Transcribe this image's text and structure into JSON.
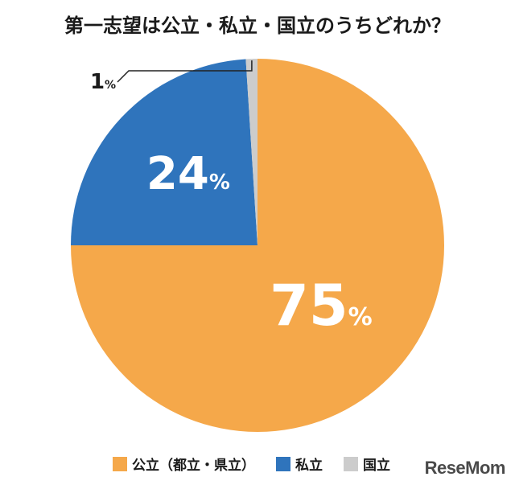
{
  "title": "第一志望は公立・私立・国立のうちどれか？",
  "logo": "ReseMom",
  "chart_data": {
    "type": "pie",
    "title": "第一志望は公立・私立・国立のうちどれか？",
    "unit": "%",
    "slices": [
      {
        "label": "公立（都立・県立）",
        "value": 75,
        "display": "75",
        "color": "#F5A84A"
      },
      {
        "label": "私立",
        "value": 24,
        "display": "24",
        "color": "#2F74BC"
      },
      {
        "label": "国立",
        "value": 1,
        "display": "1",
        "color": "#CCCCCC"
      }
    ],
    "legend_position": "bottom"
  }
}
